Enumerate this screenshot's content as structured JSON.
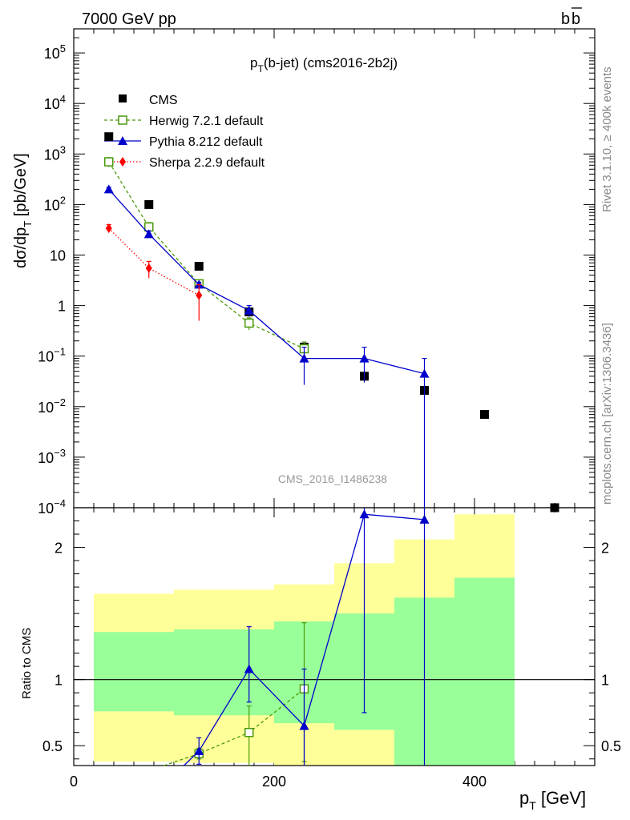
{
  "header": {
    "left": "7000 GeV pp",
    "right_base": "b",
    "right_bar": "b",
    "side_top": "Rivet 3.1.10, ≥ 400k events",
    "side_bottom": "mcplots.cern.ch [arXiv:1306.3436]"
  },
  "chart_data": {
    "type": "scatter",
    "title_main": "p",
    "title_sub": "T",
    "title_rest": "(b-jet) (cms2016-2b2j)",
    "watermark": "CMS_2016_I1486238",
    "ylabel_top": "dσ/dp",
    "ylabel_sub": "T",
    "ylabel_rest": " [pb/GeV]",
    "ylabel_bottom": "Ratio to CMS",
    "xlabel_main": "p",
    "xlabel_sub": "T",
    "xlabel_rest": " [GeV]",
    "xlim": [
      0,
      520
    ],
    "ylim_top": [
      0.0001,
      300000
    ],
    "ylim_bottom": [
      0.35,
      2.3
    ],
    "yscale_top": "log",
    "x_ticks": [
      0,
      200,
      400
    ],
    "x_tick_labels": [
      "0",
      "200",
      "400"
    ],
    "top_ticks": [
      {
        "v": 0.0001,
        "base": "10",
        "exp": "−4"
      },
      {
        "v": 0.001,
        "base": "10",
        "exp": "−3"
      },
      {
        "v": 0.01,
        "base": "10",
        "exp": "−2"
      },
      {
        "v": 0.1,
        "base": "10",
        "exp": "−1"
      },
      {
        "v": 1,
        "base": "1",
        "exp": ""
      },
      {
        "v": 10,
        "base": "10",
        "exp": ""
      },
      {
        "v": 100,
        "base": "10",
        "exp": "2"
      },
      {
        "v": 1000,
        "base": "10",
        "exp": "3"
      },
      {
        "v": 10000,
        "base": "10",
        "exp": "4"
      },
      {
        "v": 100000,
        "base": "10",
        "exp": "5"
      }
    ],
    "bottom_ticks": [
      {
        "v": 0.5,
        "label": "0.5"
      },
      {
        "v": 1,
        "label": "1"
      },
      {
        "v": 2,
        "label": "2"
      }
    ],
    "bins": [
      {
        "lo": 20,
        "hi": 50
      },
      {
        "lo": 50,
        "hi": 100
      },
      {
        "lo": 100,
        "hi": 150
      },
      {
        "lo": 150,
        "hi": 200
      },
      {
        "lo": 200,
        "hi": 260
      },
      {
        "lo": 260,
        "hi": 320
      },
      {
        "lo": 320,
        "hi": 380
      },
      {
        "lo": 380,
        "hi": 440
      },
      {
        "lo": 440,
        "hi": 520
      }
    ],
    "bands": [
      {
        "lo": 20,
        "hi": 100,
        "inner": [
          0.76,
          1.36
        ],
        "outer": [
          0.38,
          1.65
        ]
      },
      {
        "lo": 100,
        "hi": 200,
        "inner": [
          0.73,
          1.38
        ],
        "outer": [
          0.37,
          1.68
        ]
      },
      {
        "lo": 200,
        "hi": 260,
        "inner": [
          0.67,
          1.44
        ],
        "outer": [
          0.33,
          1.72
        ]
      },
      {
        "lo": 260,
        "hi": 320,
        "inner": [
          0.62,
          1.5
        ],
        "outer": [
          0.33,
          1.88
        ]
      },
      {
        "lo": 320,
        "hi": 380,
        "inner": [
          0.35,
          1.62
        ],
        "outer": [
          0.44,
          2.06
        ]
      },
      {
        "lo": 380,
        "hi": 440,
        "inner": [
          0.35,
          1.77
        ],
        "outer": [
          0.35,
          2.25
        ]
      }
    ],
    "series": [
      {
        "name": "CMS",
        "color": "#000000",
        "marker": "square-filled",
        "line": "none",
        "x": [
          35,
          75,
          125,
          175,
          230,
          290,
          350,
          410,
          480
        ],
        "y": [
          2200,
          100,
          6,
          0.75,
          0.15,
          0.04,
          0.021,
          0.007,
          9e-05
        ]
      },
      {
        "name": "Herwig 7.2.1 default",
        "color": "#4c9a0a",
        "marker": "square-open",
        "line": "dashed",
        "x": [
          35,
          75,
          125,
          175,
          230
        ],
        "y": [
          700,
          36,
          2.7,
          0.45,
          0.14
        ],
        "err_lo": [
          150,
          8,
          0.5,
          0.12,
          0.05
        ],
        "err_hi": [
          150,
          8,
          0.5,
          0.12,
          0.05
        ],
        "ratio_x": [
          90,
          125,
          175,
          230
        ],
        "ratio": [
          0.35,
          0.44,
          0.6,
          0.93
        ],
        "ratio_err_lo": [
          0,
          0.04,
          0.25,
          0.55
        ],
        "ratio_err_hi": [
          0,
          0.04,
          0.2,
          0.5
        ]
      },
      {
        "name": "Pythia 8.212 default",
        "color": "#0000cc",
        "marker": "triangle",
        "line": "solid",
        "x": [
          35,
          75,
          125,
          175,
          230,
          290,
          350
        ],
        "y": [
          200,
          26,
          2.6,
          0.8,
          0.09,
          0.09,
          0.045
        ],
        "err_lo": [
          20,
          4,
          0.3,
          0.2,
          0.063,
          0.06,
          0.045
        ],
        "err_hi": [
          20,
          4,
          0.3,
          0.2,
          0.06,
          0.06,
          0.045
        ],
        "ratio_x": [
          110,
          125,
          175,
          230,
          290,
          350
        ],
        "ratio": [
          0.35,
          0.46,
          1.08,
          0.65,
          2.25,
          2.21
        ],
        "ratio_err_lo": [
          0,
          0.1,
          0.25,
          0.3,
          1.5,
          1.86
        ],
        "ratio_err_hi": [
          0,
          0.1,
          0.32,
          0.43,
          0.05,
          0.09
        ]
      },
      {
        "name": "Sherpa 2.2.9 default",
        "color": "#ff0000",
        "marker": "diamond",
        "line": "dotted",
        "x": [
          35,
          75,
          125
        ],
        "y": [
          34,
          5.5,
          1.6
        ],
        "err_lo": [
          6,
          2,
          1.1
        ],
        "err_hi": [
          6,
          2,
          1.0
        ]
      }
    ],
    "legend": "top-left",
    "reference_line": 1
  }
}
